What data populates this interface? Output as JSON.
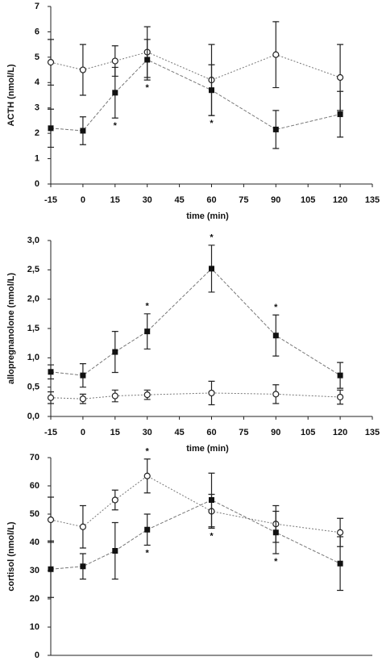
{
  "chart_data": [
    {
      "type": "line",
      "ylabel": "ACTH (nmol/L)",
      "xlabel": "time (min)",
      "x": [
        -15,
        0,
        15,
        30,
        60,
        90,
        120
      ],
      "xlim": [
        -15,
        135
      ],
      "xticks": [
        -15,
        0,
        15,
        30,
        45,
        60,
        75,
        90,
        105,
        120,
        135
      ],
      "ylim": [
        0,
        7
      ],
      "yticks": [
        0,
        1,
        2,
        3,
        4,
        5,
        6,
        7
      ],
      "series": [
        {
          "marker": "circle",
          "color": "#222222",
          "values": [
            4.8,
            4.5,
            4.85,
            5.2,
            4.1,
            5.1,
            4.2
          ],
          "errors": [
            0.9,
            1.0,
            0.6,
            1.0,
            1.4,
            1.3,
            1.3
          ],
          "significance": [
            null,
            null,
            null,
            null,
            null,
            null,
            null
          ]
        },
        {
          "marker": "square",
          "color": "#111111",
          "values": [
            2.2,
            2.1,
            3.6,
            4.9,
            3.7,
            2.15,
            2.75
          ],
          "errors": [
            0.75,
            0.55,
            1.0,
            0.8,
            1.0,
            0.75,
            0.9
          ],
          "significance": [
            null,
            null,
            "*",
            "*",
            "*",
            null,
            null
          ]
        }
      ]
    },
    {
      "type": "line",
      "ylabel": "allopregnanolone (nmol/L)",
      "xlabel": "time (min)",
      "x": [
        -15,
        0,
        15,
        30,
        60,
        90,
        120
      ],
      "xlim": [
        -15,
        135
      ],
      "xticks": [
        -15,
        0,
        15,
        30,
        45,
        60,
        75,
        90,
        105,
        120,
        135
      ],
      "ylim": [
        0,
        3
      ],
      "yticks": [
        {
          "value": 0,
          "label": "0,0"
        },
        {
          "value": 0.5,
          "label": "0,5"
        },
        {
          "value": 1,
          "label": "1,0"
        },
        {
          "value": 1.5,
          "label": "1,5"
        },
        {
          "value": 2,
          "label": "2,0"
        },
        {
          "value": 2.5,
          "label": "2,5"
        },
        {
          "value": 3,
          "label": "3,0"
        }
      ],
      "series": [
        {
          "marker": "circle",
          "color": "#222222",
          "values": [
            0.32,
            0.3,
            0.35,
            0.37,
            0.4,
            0.38,
            0.33
          ],
          "errors": [
            0.1,
            0.08,
            0.1,
            0.08,
            0.2,
            0.16,
            0.12
          ],
          "significance": [
            null,
            null,
            null,
            null,
            null,
            null,
            null
          ]
        },
        {
          "marker": "square",
          "color": "#111111",
          "values": [
            0.76,
            0.7,
            1.1,
            1.45,
            2.52,
            1.38,
            0.7
          ],
          "errors": [
            0.12,
            0.2,
            0.35,
            0.3,
            0.4,
            0.35,
            0.22
          ],
          "significance": [
            null,
            null,
            null,
            "*",
            "*",
            "*",
            null
          ]
        }
      ]
    },
    {
      "type": "line",
      "ylabel": "cortisol (nmol/L)",
      "x": [
        -15,
        0,
        15,
        30,
        60,
        90,
        120
      ],
      "xlim": [
        -15,
        135
      ],
      "ylim": [
        0,
        70
      ],
      "yticks": [
        0,
        10,
        20,
        30,
        40,
        50,
        60,
        70
      ],
      "series": [
        {
          "marker": "circle",
          "color": "#222222",
          "values": [
            48,
            45.5,
            55,
            63.5,
            51,
            46.5,
            43.5
          ],
          "errors": [
            8,
            7.5,
            3.5,
            6,
            6,
            6.5,
            5
          ],
          "significance": [
            null,
            null,
            null,
            "*",
            "*",
            null,
            null
          ]
        },
        {
          "marker": "square",
          "color": "#111111",
          "values": [
            30.5,
            31.5,
            37,
            44.5,
            55,
            43.5,
            32.5
          ],
          "errors": [
            10,
            4.5,
            10,
            5.5,
            9.5,
            7.5,
            9.5
          ],
          "significance": [
            null,
            null,
            null,
            "*",
            null,
            "*",
            null
          ]
        }
      ]
    }
  ]
}
